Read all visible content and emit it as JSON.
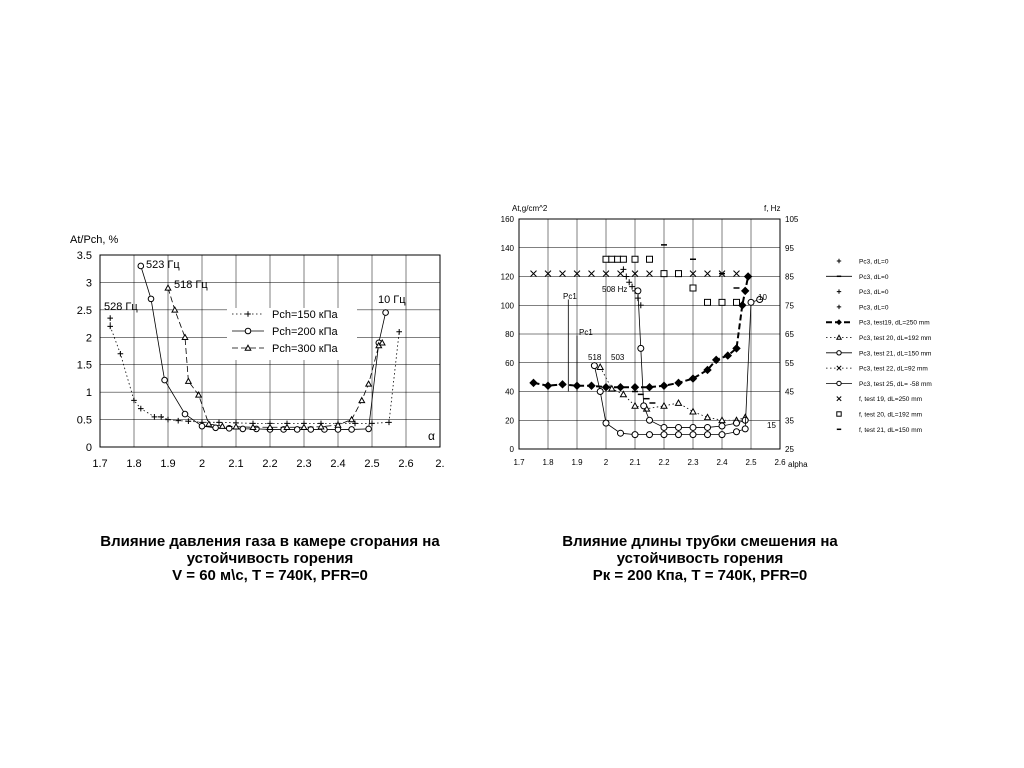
{
  "left_chart": {
    "ylabel": "At/Pch, %",
    "xlabel": "α",
    "xticks": [
      "1.7",
      "1.8",
      "1.9",
      "2",
      "2.1",
      "2.2",
      "2.3",
      "2.4",
      "2.5",
      "2.6",
      "2."
    ],
    "yticks": [
      "0",
      "0.5",
      "1",
      "1.5",
      "2",
      "2.5",
      "3",
      "3.5"
    ],
    "annotations": [
      "523 Гц",
      "518 Гц",
      "528 Гц",
      "10 Гц"
    ],
    "legend": [
      "Pch=150 кПа",
      "Pch=200 кПа",
      "Pch=300 кПа"
    ]
  },
  "right_chart": {
    "ylabel_left": "At,g/cm^2",
    "ylabel_right": "f, Hz",
    "xlabel": "alpha",
    "xticks": [
      "1.7",
      "1.8",
      "1.9",
      "2",
      "2.1",
      "2.2",
      "2.3",
      "2.4",
      "2.5",
      "2.6"
    ],
    "yticks_left": [
      "0",
      "20",
      "40",
      "60",
      "80",
      "100",
      "120",
      "140",
      "160"
    ],
    "yticks_right": [
      "25",
      "35",
      "45",
      "55",
      "65",
      "75",
      "85",
      "95",
      "105"
    ],
    "annotations": [
      "Pc1",
      "Pc1",
      "508 Hz",
      "518",
      "503",
      "10",
      "15"
    ],
    "legend": [
      "Pc3,  dL=0",
      "Pc3,  dL=0",
      "Pc3, dL=0",
      "Pc3, dL=0",
      "Pc3, test19,  dL=250 mm",
      "Pc3, test 20,  dL=192 mm",
      "Pc3, test 21, dL=150 mm",
      "Pc3, test 22, dL=92 mm",
      "Pc3, test 25, dL= -58 mm",
      "f, test 19, dL=250 mm",
      "f, test 20, dL=192 mm",
      "f, test 21, dL=150 mm"
    ]
  },
  "captions": {
    "left": [
      "Влияние давления газа в камере сгорания на",
      "устойчивость горения",
      "V = 60 м\\с, T = 740К, PFR=0"
    ],
    "right": [
      "Влияние длины трубки смешения на",
      "устойчивость горения",
      "Рк = 200 Кпа, T = 740К, PFR=0"
    ]
  },
  "chart_data": [
    {
      "type": "line",
      "title": "",
      "xlabel": "α",
      "ylabel": "At/Pch, %",
      "xlim": [
        1.7,
        2.7
      ],
      "ylim": [
        0,
        3.5
      ],
      "grid": true,
      "legend_position": "center",
      "annotations": [
        {
          "text": "523 Гц",
          "x": 1.82,
          "y": 3.3
        },
        {
          "text": "518 Гц",
          "x": 1.9,
          "y": 2.9
        },
        {
          "text": "528 Гц",
          "x": 1.72,
          "y": 2.4
        },
        {
          "text": "10 Гц",
          "x": 2.54,
          "y": 2.45
        }
      ],
      "series": [
        {
          "name": "Pch=150 кПа",
          "marker": "plus",
          "style": "dotted",
          "x": [
            1.73,
            1.73,
            1.76,
            1.8,
            1.82,
            1.86,
            1.88,
            1.9,
            1.93,
            1.96,
            2.0,
            2.05,
            2.1,
            2.15,
            2.2,
            2.25,
            2.3,
            2.35,
            2.4,
            2.45,
            2.5,
            2.55,
            2.58
          ],
          "y": [
            2.35,
            2.2,
            1.7,
            0.85,
            0.7,
            0.55,
            0.55,
            0.5,
            0.48,
            0.47,
            0.45,
            0.45,
            0.44,
            0.43,
            0.43,
            0.43,
            0.43,
            0.43,
            0.43,
            0.43,
            0.43,
            0.45,
            2.1
          ]
        },
        {
          "name": "Pch=200 кПа",
          "marker": "circle",
          "style": "solid",
          "x": [
            1.82,
            1.85,
            1.89,
            1.95,
            2.0,
            2.04,
            2.08,
            2.12,
            2.16,
            2.2,
            2.24,
            2.28,
            2.32,
            2.36,
            2.4,
            2.44,
            2.49,
            2.52,
            2.54
          ],
          "y": [
            3.3,
            2.7,
            1.22,
            0.6,
            0.38,
            0.35,
            0.34,
            0.33,
            0.33,
            0.32,
            0.32,
            0.32,
            0.32,
            0.32,
            0.32,
            0.32,
            0.33,
            1.9,
            2.45
          ]
        },
        {
          "name": "Pch=300 кПа",
          "marker": "triangle",
          "style": "dashed",
          "x": [
            1.9,
            1.92,
            1.95,
            1.96,
            1.99,
            2.02,
            2.06,
            2.1,
            2.15,
            2.2,
            2.25,
            2.3,
            2.35,
            2.4,
            2.44,
            2.47,
            2.49,
            2.52,
            2.53
          ],
          "y": [
            2.9,
            2.5,
            2.0,
            1.2,
            0.95,
            0.42,
            0.38,
            0.37,
            0.36,
            0.36,
            0.36,
            0.36,
            0.37,
            0.4,
            0.5,
            0.85,
            1.15,
            1.85,
            1.9
          ]
        }
      ]
    },
    {
      "type": "line",
      "title": "",
      "xlabel": "alpha",
      "ylabel": "At,g/cm^2",
      "ylabel_right": "f, Hz",
      "xlim": [
        1.7,
        2.6
      ],
      "ylim": [
        0,
        160
      ],
      "ylim_right": [
        25,
        105
      ],
      "grid": true,
      "legend_position": "right",
      "annotations": [
        {
          "text": "Pc1",
          "x": 1.87,
          "y": 104
        },
        {
          "text": "Pc1",
          "x": 1.9,
          "y": 79
        },
        {
          "text": "508 Hz",
          "x": 2.06,
          "y": 108
        },
        {
          "text": "518",
          "x": 1.96,
          "y": 60
        },
        {
          "text": "503",
          "x": 2.02,
          "y": 60
        },
        {
          "text": "10",
          "x": 2.54,
          "y": 104
        },
        {
          "text": "15",
          "x": 2.56,
          "y": 17
        }
      ],
      "series": [
        {
          "name": "Pc3,  dL=0",
          "marker": "plus",
          "axis": "left",
          "x": [
            2.06,
            2.07,
            2.08,
            2.09,
            2.1,
            2.11,
            2.12
          ],
          "y": [
            125,
            120,
            116,
            113,
            110,
            105,
            100
          ]
        },
        {
          "name": "Pc3,  dL=0",
          "marker": "dash",
          "axis": "left",
          "x": [
            2.1,
            2.12,
            2.14,
            2.16
          ],
          "y": [
            40,
            38,
            35,
            32
          ]
        },
        {
          "name": "Pc3, test19,  dL=250 mm",
          "marker": "diamond",
          "style": "dashed",
          "axis": "left",
          "x": [
            1.75,
            1.8,
            1.85,
            1.9,
            1.95,
            2.0,
            2.05,
            2.1,
            2.15,
            2.2,
            2.25,
            2.3,
            2.35,
            2.38,
            2.42,
            2.45,
            2.47,
            2.48,
            2.49
          ],
          "y": [
            46,
            44,
            45,
            44,
            44,
            43,
            43,
            43,
            43,
            44,
            46,
            49,
            55,
            62,
            65,
            70,
            100,
            110,
            120
          ]
        },
        {
          "name": "Pc3, test 20,  dL=192 mm",
          "marker": "triangle",
          "style": "dotted",
          "axis": "left",
          "x": [
            1.98,
            2.02,
            2.06,
            2.1,
            2.14,
            2.2,
            2.25,
            2.3,
            2.35,
            2.4,
            2.45,
            2.48
          ],
          "y": [
            57,
            42,
            38,
            30,
            28,
            30,
            32,
            26,
            22,
            20,
            20,
            22
          ]
        },
        {
          "name": "Pc3, test 21, dL=150 mm",
          "marker": "circle",
          "style": "solid",
          "axis": "left",
          "x": [
            2.11,
            2.12,
            2.13,
            2.15,
            2.2,
            2.25,
            2.3,
            2.35,
            2.4,
            2.45,
            2.48
          ],
          "y": [
            110,
            70,
            30,
            20,
            15,
            15,
            15,
            15,
            16,
            18,
            20
          ]
        },
        {
          "name": "Pc3, test 25, dL= -58 mm",
          "marker": "circle",
          "style": "solid",
          "axis": "left",
          "x": [
            1.96,
            1.98,
            2.0,
            2.05,
            2.1,
            2.15,
            2.2,
            2.25,
            2.3,
            2.35,
            2.4,
            2.45,
            2.48,
            2.5,
            2.53
          ],
          "y": [
            58,
            40,
            18,
            11,
            10,
            10,
            10,
            10,
            10,
            10,
            10,
            12,
            14,
            102,
            104
          ]
        },
        {
          "name": "f, test 19, dL=250 mm",
          "marker": "x",
          "axis": "right",
          "x": [
            1.75,
            1.8,
            1.85,
            1.9,
            1.95,
            2.0,
            2.05,
            2.1,
            2.15,
            2.2,
            2.25,
            2.3,
            2.35,
            2.4,
            2.45
          ],
          "y": [
            86,
            86,
            86,
            86,
            86,
            86,
            86,
            86,
            86,
            86,
            86,
            86,
            86,
            86,
            86
          ]
        },
        {
          "name": "f, test 20, dL=192 mm",
          "marker": "square",
          "axis": "right",
          "x": [
            2.0,
            2.02,
            2.04,
            2.06,
            2.1,
            2.15,
            2.2,
            2.25,
            2.3,
            2.35,
            2.4,
            2.45
          ],
          "y": [
            91,
            91,
            91,
            91,
            91,
            91,
            86,
            86,
            81,
            76,
            76,
            76
          ]
        },
        {
          "name": "f, test 21, dL=150 mm",
          "marker": "dash",
          "axis": "right",
          "x": [
            2.2,
            2.3,
            2.4,
            2.45
          ],
          "y": [
            96,
            91,
            86,
            81
          ]
        }
      ]
    }
  ]
}
